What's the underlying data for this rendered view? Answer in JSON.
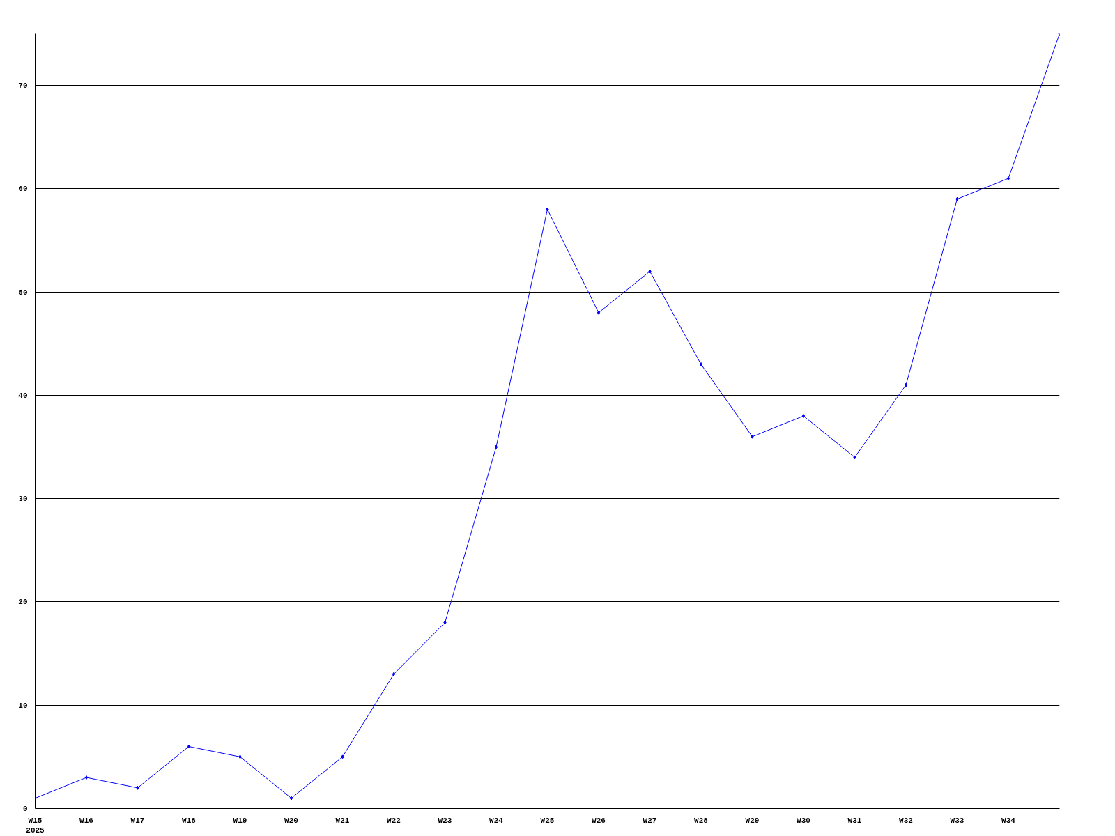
{
  "chart_data": {
    "type": "line",
    "categories": [
      "W15\n2025",
      "W16",
      "W17",
      "W18",
      "W19",
      "W20",
      "W21",
      "W22",
      "W23",
      "W24",
      "W25",
      "W26",
      "W27",
      "W28",
      "W29",
      "W30",
      "W31",
      "W32",
      "W33",
      "W34",
      null
    ],
    "series": [
      {
        "color": "#0000ff",
        "values": [
          1,
          3,
          2,
          6,
          5,
          1,
          5,
          13,
          18,
          35,
          58,
          48,
          52,
          43,
          36,
          38,
          34,
          41,
          59,
          61,
          75
        ]
      }
    ],
    "ylim": [
      0,
      75
    ],
    "yticks": [
      0,
      10,
      20,
      30,
      40,
      50,
      60,
      70
    ],
    "grid": "y",
    "marker": "diamond",
    "line_style": "solid"
  }
}
